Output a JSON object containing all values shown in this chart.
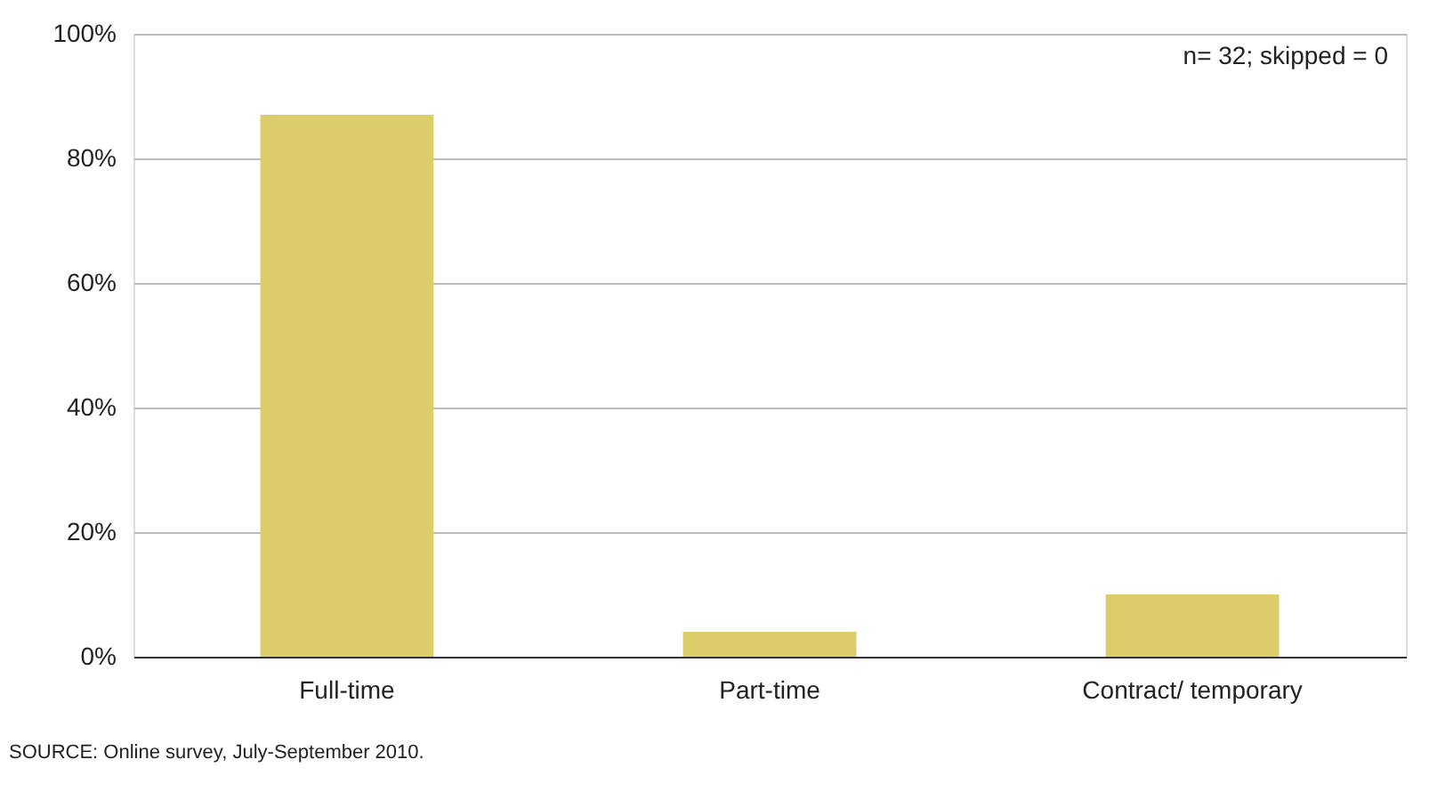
{
  "chart_data": {
    "type": "bar",
    "categories": [
      "Full-time",
      "Part-time",
      "Contract/ temporary"
    ],
    "values": [
      87,
      4,
      10
    ],
    "color": "#dccd6a",
    "ylim": [
      0,
      100
    ],
    "yticks": [
      {
        "value": 0,
        "label": "0%"
      },
      {
        "value": 20,
        "label": "20%"
      },
      {
        "value": 40,
        "label": "40%"
      },
      {
        "value": 60,
        "label": "60%"
      },
      {
        "value": 80,
        "label": "80%"
      },
      {
        "value": 100,
        "label": "100%"
      }
    ],
    "grid": "y",
    "annotations": [
      "n= 32; skipped = 0",
      "SOURCE: Online survey, July-September 2010."
    ]
  }
}
